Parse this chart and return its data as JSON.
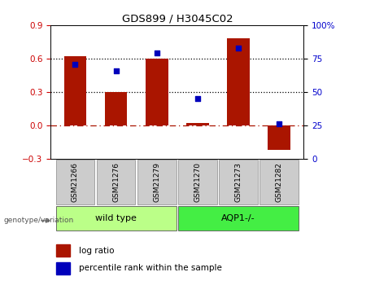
{
  "title": "GDS899 / H3045C02",
  "categories": [
    "GSM21266",
    "GSM21276",
    "GSM21279",
    "GSM21270",
    "GSM21273",
    "GSM21282"
  ],
  "log_ratio": [
    0.62,
    0.3,
    0.6,
    0.02,
    0.78,
    -0.22
  ],
  "percentile_rank": [
    71,
    66,
    79,
    45,
    83,
    26
  ],
  "bar_color": "#aa1500",
  "dot_color": "#0000bb",
  "ylim_left": [
    -0.3,
    0.9
  ],
  "ylim_right": [
    0,
    100
  ],
  "yticks_left": [
    -0.3,
    0.0,
    0.3,
    0.6,
    0.9
  ],
  "yticks_right": [
    0,
    25,
    50,
    75,
    100
  ],
  "hlines": [
    0.3,
    0.6
  ],
  "group1_label": "wild type",
  "group2_label": "AQP1-/-",
  "group1_color": "#bbff88",
  "group2_color": "#44ee44",
  "group1_indices": [
    0,
    1,
    2
  ],
  "group2_indices": [
    3,
    4,
    5
  ],
  "genotype_label": "genotype/variation",
  "legend_log_ratio": "log ratio",
  "legend_percentile": "percentile rank within the sample",
  "tick_label_color_left": "#cc0000",
  "tick_label_color_right": "#0000cc",
  "bar_width": 0.55,
  "table_bg": "#cccccc",
  "table_edge": "#888888"
}
